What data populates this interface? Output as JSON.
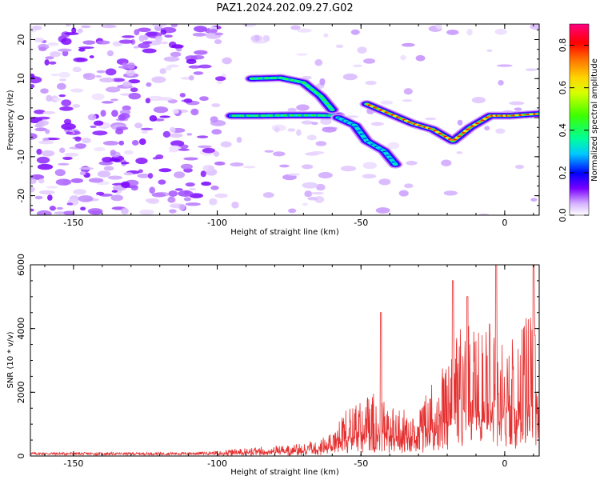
{
  "title": "PAZ1.2024.202.09.27.G02",
  "colors": {
    "snr_line": "#e53030",
    "axis": "#000000"
  },
  "chart_data": [
    {
      "type": "heatmap",
      "xlabel": "Height of straight line (km)",
      "ylabel": "Frequency (Hz)",
      "xlim": [
        -165,
        12
      ],
      "ylim": [
        -25,
        24
      ],
      "xticks": [
        -150,
        -100,
        -50,
        0
      ],
      "yticks": [
        -20,
        -10,
        0,
        10,
        20
      ],
      "colorbar": {
        "label": "Normalized spectral amplitude",
        "range": [
          0.0,
          0.9
        ],
        "ticks": [
          0.0,
          0.2,
          0.4,
          0.6,
          0.8
        ],
        "colormap": "rainbow-on-white"
      },
      "ridges": [
        {
          "points": [
            [
              -95,
              0.5
            ],
            [
              -85,
              0.5
            ],
            [
              -75,
              0.6
            ],
            [
              -65,
              0.6
            ],
            [
              -58,
              0.5
            ]
          ],
          "amplitude": 0.45
        },
        {
          "points": [
            [
              -88,
              10
            ],
            [
              -78,
              10.2
            ],
            [
              -70,
              9
            ],
            [
              -64,
              5.5
            ],
            [
              -60,
              2
            ]
          ],
          "amplitude": 0.45
        },
        {
          "points": [
            [
              -58,
              0
            ],
            [
              -52,
              -2
            ],
            [
              -48,
              -6
            ],
            [
              -42,
              -8.5
            ],
            [
              -38,
              -12
            ]
          ],
          "amplitude": 0.35
        },
        {
          "points": [
            [
              -48,
              3.5
            ],
            [
              -40,
              1
            ],
            [
              -32,
              -1.5
            ],
            [
              -25,
              -3
            ],
            [
              -18,
              -6
            ],
            [
              -12,
              -2.5
            ],
            [
              -5,
              0.5
            ],
            [
              2,
              0.5
            ],
            [
              12,
              1
            ]
          ],
          "amplitude": 0.8
        }
      ]
    },
    {
      "type": "line",
      "xlabel": "Height of straight line (km)",
      "ylabel": "SNR (10 * v/v)",
      "xlim": [
        -165,
        12
      ],
      "ylim": [
        0,
        6000
      ],
      "xticks": [
        -150,
        -100,
        -50,
        0
      ],
      "yticks": [
        0,
        2000,
        4000,
        6000
      ],
      "envelope": [
        [
          -165,
          120
        ],
        [
          -140,
          110
        ],
        [
          -110,
          120
        ],
        [
          -100,
          150
        ],
        [
          -95,
          220
        ],
        [
          -85,
          300
        ],
        [
          -75,
          350
        ],
        [
          -65,
          500
        ],
        [
          -60,
          800
        ],
        [
          -55,
          1500
        ],
        [
          -50,
          1800
        ],
        [
          -45,
          2000
        ],
        [
          -40,
          1600
        ],
        [
          -35,
          1500
        ],
        [
          -30,
          1400
        ],
        [
          -25,
          2500
        ],
        [
          -20,
          3000
        ],
        [
          -15,
          4500
        ],
        [
          -10,
          4000
        ],
        [
          -5,
          4200
        ],
        [
          0,
          3600
        ],
        [
          5,
          3800
        ],
        [
          10,
          5000
        ],
        [
          12,
          4500
        ]
      ],
      "peaks": [
        [
          -43,
          4500
        ],
        [
          -18,
          5500
        ],
        [
          -13,
          5000
        ],
        [
          -3,
          6000
        ],
        [
          10,
          6000
        ]
      ]
    }
  ]
}
